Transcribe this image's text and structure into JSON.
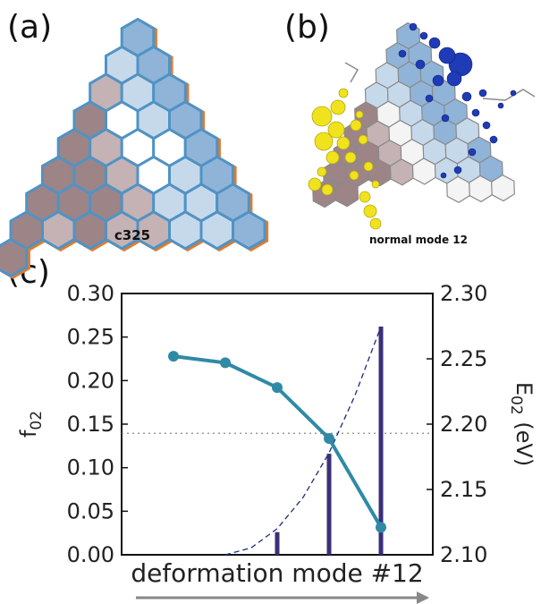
{
  "panels": {
    "a": {
      "label": "(a)",
      "caption": "c325"
    },
    "b": {
      "label": "(b)",
      "caption": "normal mode 12"
    },
    "c": {
      "label": "(c)"
    }
  },
  "colors": {
    "line": "#2f8aa5",
    "bars": "#3a2f78",
    "dashed": "#1c2a7e",
    "dotted": "#888888",
    "hex_blue_edge": "#4f93c6",
    "hex_orange_edge": "#e07b2e",
    "hex_dark": "#9c8487",
    "hex_light_mauve": "#c4b2b4",
    "hex_blue_fill": "#8fb4d8",
    "hex_light_blue": "#c6d9ea",
    "yellow": "#f0e21c",
    "navy": "#1f3bb5",
    "arrow": "#888888"
  },
  "chart_data": {
    "type": "line",
    "title": "",
    "xlabel": "deformation mode #12",
    "ylabel_left": "f02",
    "ylabel_left_sub": "02",
    "ylabel_right": "E02 (eV)",
    "ylabel_right_sub": "02",
    "ylim_left": [
      0.0,
      0.3
    ],
    "ylim_right": [
      2.1,
      2.3
    ],
    "yticks_left": [
      "0.00",
      "0.05",
      "0.10",
      "0.15",
      "0.20",
      "0.25",
      "0.30"
    ],
    "yticks_right": [
      "2.10",
      "2.15",
      "2.20",
      "2.25",
      "2.30"
    ],
    "xlim": [
      0,
      6
    ],
    "series": [
      {
        "kind": "line_markers",
        "axis": "right",
        "x": [
          1,
          2,
          3,
          4,
          5
        ],
        "values": [
          2.252,
          2.247,
          2.228,
          2.189,
          2.121
        ]
      },
      {
        "kind": "bars",
        "axis": "left",
        "x": [
          3,
          4,
          5
        ],
        "values": [
          0.026,
          0.116,
          0.262
        ]
      },
      {
        "kind": "dashed_curve",
        "axis": "left",
        "x": [
          2,
          2.5,
          3,
          3.5,
          4,
          4.5,
          5
        ],
        "values": [
          0.0,
          0.008,
          0.03,
          0.066,
          0.117,
          0.183,
          0.262
        ]
      },
      {
        "kind": "dotted_reference",
        "axis": "right",
        "values": [
          2.193
        ]
      }
    ],
    "grid": false
  }
}
